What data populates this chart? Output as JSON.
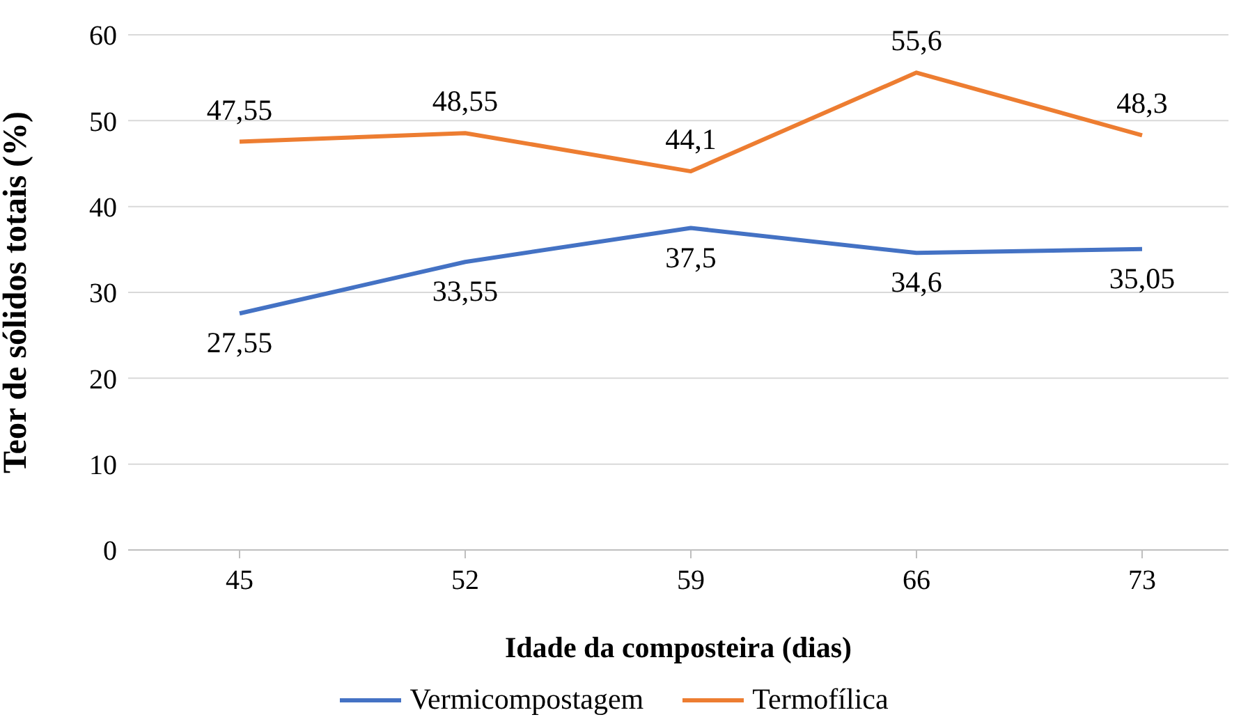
{
  "chart_data": {
    "type": "line",
    "xlabel": "Idade da composteira (dias)",
    "ylabel": "Teor de sólidos totais (%)",
    "categories": [
      "45",
      "52",
      "59",
      "66",
      "73"
    ],
    "series": [
      {
        "name": "Vermicompostagem",
        "color": "#4472c4",
        "values": [
          27.55,
          33.55,
          37.5,
          34.6,
          35.05
        ],
        "value_labels": [
          "27,55",
          "33,55",
          "37,5",
          "34,6",
          "35,05"
        ]
      },
      {
        "name": "Termofílica",
        "color": "#ed7d31",
        "values": [
          47.55,
          48.55,
          44.1,
          55.6,
          48.3
        ],
        "value_labels": [
          "47,55",
          "48,55",
          "44,1",
          "55,6",
          "48,3"
        ]
      }
    ],
    "ylim": [
      0,
      60
    ],
    "yticks": [
      0,
      10,
      20,
      30,
      40,
      50,
      60
    ],
    "grid": "y",
    "legend": "bottom",
    "marker": "none",
    "line_style": "solid"
  }
}
